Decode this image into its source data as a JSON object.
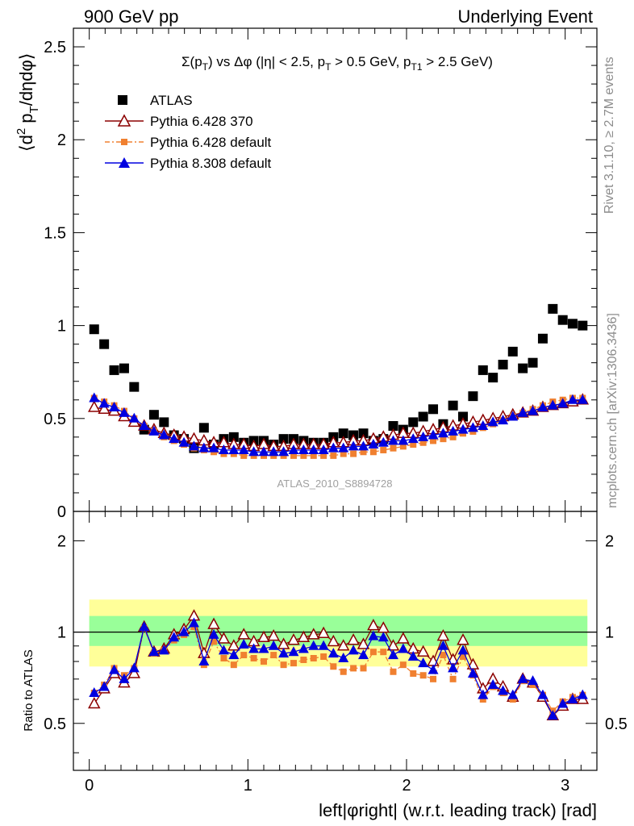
{
  "header": {
    "left": "900 GeV pp",
    "right": "Underlying Event"
  },
  "side": {
    "rivet": "Rivet 3.1.10, ≥ 2.7M events",
    "mcplots": "mcplots.cern.ch [arXiv:1306.3436]"
  },
  "watermark": "ATLAS_2010_S8894728",
  "colors": {
    "atlas": "#000000",
    "p6_370": "#8b0000",
    "p6_def": "#f08030",
    "p8": "#0000e0",
    "band_outer": "#ffff99",
    "band_inner": "#99ff99"
  },
  "chart_data": [
    {
      "type": "scatter",
      "panel": "main",
      "title": "Σ(pT) vs Δφ (|η| < 2.5, pT > 0.5 GeV, pT1 > 2.5 GeV)",
      "title_parts": {
        "sigma": "Σ(p",
        "t1": "T",
        "mid": ") vs Δφ (|η| < 2.5, p",
        "t2": "T",
        "mid2": " > 0.5 GeV, p",
        "t3": "T1",
        "end": " > 2.5 GeV)"
      },
      "ylabel_parts": {
        "a": "⟨d",
        "sup": "2",
        "b": " p",
        "sub": "T",
        "c": "/dηdφ⟩"
      },
      "xlim": [
        -0.1,
        3.2
      ],
      "ylim": [
        0,
        2.6
      ],
      "yticks": [
        "0",
        "0.5",
        "1",
        "1.5",
        "2",
        "2.5"
      ],
      "legend_position": "top-left",
      "x": [
        0.031,
        0.094,
        0.157,
        0.22,
        0.283,
        0.346,
        0.408,
        0.471,
        0.534,
        0.597,
        0.66,
        0.723,
        0.785,
        0.848,
        0.911,
        0.974,
        1.037,
        1.1,
        1.162,
        1.225,
        1.288,
        1.351,
        1.414,
        1.477,
        1.539,
        1.602,
        1.665,
        1.728,
        1.791,
        1.854,
        1.916,
        1.979,
        2.042,
        2.105,
        2.168,
        2.231,
        2.293,
        2.356,
        2.419,
        2.482,
        2.545,
        2.608,
        2.67,
        2.733,
        2.796,
        2.859,
        2.922,
        2.985,
        3.047,
        3.11
      ],
      "series": [
        {
          "name": "ATLAS",
          "marker": "square",
          "values": [
            0.98,
            0.9,
            0.76,
            0.77,
            0.67,
            0.44,
            0.52,
            0.48,
            0.41,
            0.39,
            0.34,
            0.45,
            0.36,
            0.39,
            0.4,
            0.37,
            0.38,
            0.38,
            0.36,
            0.39,
            0.39,
            0.38,
            0.37,
            0.37,
            0.4,
            0.42,
            0.41,
            0.42,
            0.38,
            0.39,
            0.46,
            0.44,
            0.48,
            0.51,
            0.55,
            0.47,
            0.57,
            0.51,
            0.62,
            0.76,
            0.72,
            0.79,
            0.86,
            0.77,
            0.8,
            0.93,
            1.09,
            1.03,
            1.01,
            1.0
          ]
        },
        {
          "name": "Pythia 6.428 370",
          "marker": "triangle-open",
          "values": [
            0.56,
            0.55,
            0.54,
            0.51,
            0.48,
            0.46,
            0.44,
            0.42,
            0.41,
            0.4,
            0.39,
            0.38,
            0.37,
            0.37,
            0.36,
            0.36,
            0.35,
            0.36,
            0.35,
            0.35,
            0.36,
            0.36,
            0.36,
            0.36,
            0.37,
            0.37,
            0.38,
            0.38,
            0.39,
            0.4,
            0.41,
            0.42,
            0.42,
            0.43,
            0.44,
            0.45,
            0.46,
            0.47,
            0.48,
            0.49,
            0.5,
            0.51,
            0.52,
            0.53,
            0.54,
            0.56,
            0.57,
            0.58,
            0.59,
            0.6
          ]
        },
        {
          "name": "Pythia 6.428 default",
          "marker": "square-small",
          "values": [
            0.61,
            0.59,
            0.57,
            0.54,
            0.5,
            0.46,
            0.43,
            0.4,
            0.38,
            0.36,
            0.34,
            0.33,
            0.32,
            0.31,
            0.31,
            0.3,
            0.3,
            0.3,
            0.3,
            0.3,
            0.3,
            0.3,
            0.3,
            0.3,
            0.3,
            0.31,
            0.31,
            0.32,
            0.32,
            0.33,
            0.34,
            0.35,
            0.36,
            0.37,
            0.38,
            0.39,
            0.4,
            0.42,
            0.43,
            0.45,
            0.47,
            0.49,
            0.51,
            0.53,
            0.55,
            0.57,
            0.59,
            0.6,
            0.61,
            0.61
          ]
        },
        {
          "name": "Pythia 8.308 default",
          "marker": "triangle",
          "values": [
            0.61,
            0.58,
            0.56,
            0.53,
            0.5,
            0.46,
            0.43,
            0.41,
            0.39,
            0.37,
            0.35,
            0.34,
            0.34,
            0.33,
            0.33,
            0.33,
            0.32,
            0.32,
            0.32,
            0.32,
            0.33,
            0.33,
            0.33,
            0.33,
            0.34,
            0.34,
            0.35,
            0.35,
            0.36,
            0.37,
            0.38,
            0.38,
            0.39,
            0.4,
            0.41,
            0.42,
            0.43,
            0.44,
            0.45,
            0.46,
            0.48,
            0.49,
            0.51,
            0.53,
            0.54,
            0.56,
            0.57,
            0.58,
            0.6,
            0.6
          ]
        }
      ]
    },
    {
      "type": "scatter",
      "panel": "ratio",
      "xlabel": "left|φright| (w.r.t. leading track) [rad]",
      "ylabel": "Ratio to ATLAS",
      "xlim": [
        -0.1,
        3.2
      ],
      "ylim": [
        0.35,
        2.5
      ],
      "yticks": [
        "0.5",
        "1",
        "2"
      ],
      "xticks": [
        "0",
        "1",
        "2",
        "3"
      ],
      "reference_line": 1,
      "band_outer": [
        0.77,
        1.28
      ],
      "band_inner": [
        0.9,
        1.13
      ],
      "series": [
        {
          "name": "Pythia 6.428 370",
          "marker": "triangle-open",
          "values": [
            0.58,
            0.65,
            0.73,
            0.68,
            0.73,
            1.04,
            0.86,
            0.88,
            0.98,
            1.02,
            1.13,
            0.85,
            1.06,
            0.95,
            0.9,
            0.98,
            0.93,
            0.96,
            0.97,
            0.91,
            0.94,
            0.96,
            0.98,
            0.99,
            0.93,
            0.9,
            0.94,
            0.91,
            1.05,
            1.03,
            0.9,
            0.95,
            0.88,
            0.86,
            0.8,
            0.97,
            0.81,
            0.94,
            0.78,
            0.65,
            0.7,
            0.66,
            0.61,
            0.7,
            0.68,
            0.61,
            0.53,
            0.57,
            0.6,
            0.6
          ]
        },
        {
          "name": "Pythia 6.428 default",
          "marker": "square-small",
          "values": [
            0.63,
            0.67,
            0.76,
            0.72,
            0.76,
            1.03,
            0.85,
            0.87,
            0.94,
            0.98,
            1.04,
            0.78,
            0.93,
            0.82,
            0.78,
            0.84,
            0.82,
            0.8,
            0.84,
            0.78,
            0.79,
            0.81,
            0.82,
            0.83,
            0.77,
            0.74,
            0.76,
            0.76,
            0.86,
            0.86,
            0.74,
            0.78,
            0.73,
            0.72,
            0.7,
            0.84,
            0.7,
            0.83,
            0.72,
            0.6,
            0.66,
            0.63,
            0.6,
            0.69,
            0.67,
            0.62,
            0.55,
            0.59,
            0.61,
            0.62
          ]
        },
        {
          "name": "Pythia 8.308 default",
          "marker": "triangle",
          "values": [
            0.63,
            0.66,
            0.75,
            0.7,
            0.76,
            1.04,
            0.86,
            0.87,
            0.96,
            1.0,
            1.07,
            0.8,
            0.98,
            0.87,
            0.84,
            0.91,
            0.88,
            0.88,
            0.9,
            0.85,
            0.86,
            0.88,
            0.9,
            0.9,
            0.85,
            0.82,
            0.87,
            0.84,
            0.97,
            0.96,
            0.84,
            0.88,
            0.83,
            0.79,
            0.75,
            0.9,
            0.76,
            0.87,
            0.73,
            0.62,
            0.67,
            0.64,
            0.62,
            0.7,
            0.69,
            0.62,
            0.53,
            0.58,
            0.6,
            0.62
          ]
        }
      ]
    }
  ]
}
